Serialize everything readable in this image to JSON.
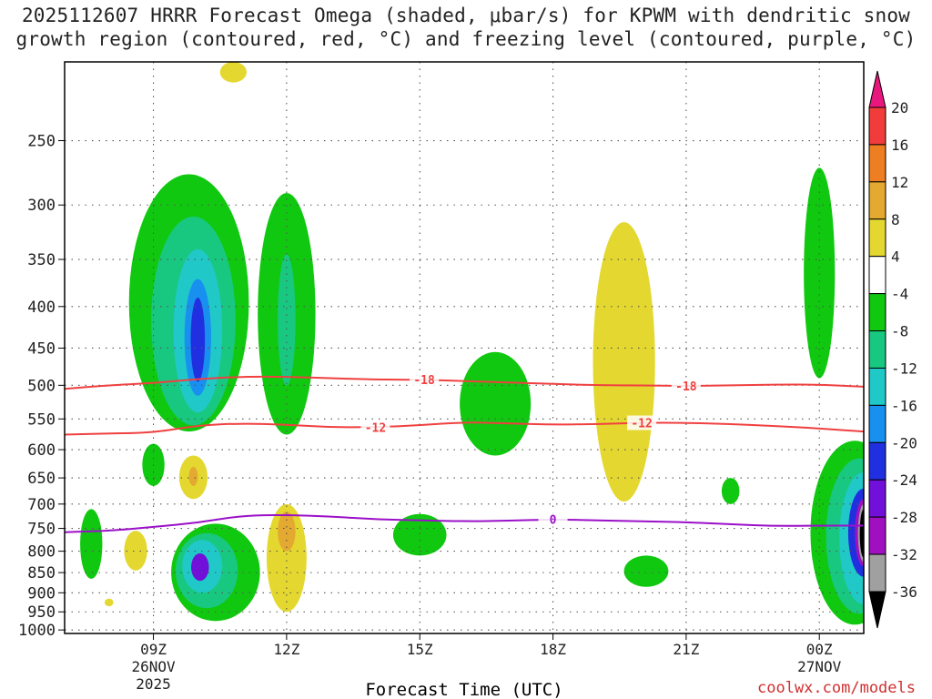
{
  "title_line1": "2025112607 HRRR Forecast Omega (shaded, μbar/s) for KPWM with dendritic snow",
  "title_line2": "growth region (contoured, red, °C) and freezing level (contoured, purple, °C)",
  "credit": "coolwx.com/models",
  "chart_data": {
    "type": "contour",
    "title": "2025112607 HRRR Forecast Omega (shaded, μbar/s) for KPWM with dendritic snow growth region (contoured, red, °C) and freezing level (contoured, purple, °C)",
    "xlabel": "Forecast Time (UTC)",
    "ylabel": "",
    "x_range_hours": [
      7,
      25
    ],
    "y_range_hpa": [
      1010,
      200
    ],
    "y_scale": "log-pressure",
    "grid": true,
    "y_ticks": [
      250,
      300,
      350,
      400,
      450,
      500,
      550,
      600,
      650,
      700,
      750,
      800,
      850,
      900,
      950,
      1000
    ],
    "x_ticks": [
      {
        "hour": 9,
        "lines": [
          "09Z",
          "26NOV",
          "2025"
        ]
      },
      {
        "hour": 12,
        "lines": [
          "12Z"
        ]
      },
      {
        "hour": 15,
        "lines": [
          "15Z"
        ]
      },
      {
        "hour": 18,
        "lines": [
          "18Z"
        ]
      },
      {
        "hour": 21,
        "lines": [
          "21Z"
        ]
      },
      {
        "hour": 24,
        "lines": [
          "00Z",
          "27NOV"
        ]
      }
    ],
    "colorbar": {
      "units": "μbar/s",
      "levels": [
        20,
        16,
        12,
        8,
        4,
        -4,
        -8,
        -12,
        -16,
        -20,
        -24,
        -28,
        -32,
        -36
      ],
      "bins": [
        {
          "from": 20,
          "to": null,
          "color": "#e8177d"
        },
        {
          "from": 16,
          "to": 20,
          "color": "#f23c3c"
        },
        {
          "from": 12,
          "to": 16,
          "color": "#ee7e22"
        },
        {
          "from": 8,
          "to": 12,
          "color": "#e4a930"
        },
        {
          "from": 4,
          "to": 8,
          "color": "#e4d830"
        },
        {
          "from": -4,
          "to": 4,
          "color": "#ffffff"
        },
        {
          "from": -8,
          "to": -4,
          "color": "#10c810"
        },
        {
          "from": -12,
          "to": -8,
          "color": "#18c880"
        },
        {
          "from": -16,
          "to": -12,
          "color": "#20c8c8"
        },
        {
          "from": -20,
          "to": -16,
          "color": "#1890f0"
        },
        {
          "from": -24,
          "to": -20,
          "color": "#2030e0"
        },
        {
          "from": -28,
          "to": -24,
          "color": "#7010d8"
        },
        {
          "from": -32,
          "to": -28,
          "color": "#a010c0"
        },
        {
          "from": -36,
          "to": -32,
          "color": "#a0a0a0"
        },
        {
          "from": null,
          "to": -36,
          "color": "#000000"
        }
      ]
    },
    "contours": [
      {
        "name": "-18 C isotherm",
        "label": "-18",
        "color": "#f04040",
        "points": [
          [
            7,
            505
          ],
          [
            8,
            500
          ],
          [
            9,
            497
          ],
          [
            10,
            491
          ],
          [
            11,
            488
          ],
          [
            12,
            488
          ],
          [
            13,
            490
          ],
          [
            14,
            492
          ],
          [
            15,
            492
          ],
          [
            16,
            494
          ],
          [
            17,
            496
          ],
          [
            18,
            498
          ],
          [
            19,
            500
          ],
          [
            20,
            500
          ],
          [
            21,
            501
          ],
          [
            22,
            500
          ],
          [
            23,
            499
          ],
          [
            24,
            499
          ],
          [
            25,
            502
          ]
        ],
        "label_hours": [
          15.1,
          21.0
        ]
      },
      {
        "name": "-12 C isotherm",
        "label": "-12",
        "color": "#f04040",
        "points": [
          [
            7,
            575
          ],
          [
            8,
            573
          ],
          [
            9,
            572
          ],
          [
            10,
            560
          ],
          [
            11,
            557
          ],
          [
            12,
            559
          ],
          [
            13,
            563
          ],
          [
            14,
            563
          ],
          [
            15,
            560
          ],
          [
            16,
            555
          ],
          [
            17,
            557
          ],
          [
            18,
            559
          ],
          [
            19,
            558
          ],
          [
            20,
            556
          ],
          [
            21,
            556
          ],
          [
            22,
            558
          ],
          [
            23,
            561
          ],
          [
            24,
            565
          ],
          [
            25,
            570
          ]
        ],
        "label_hours": [
          14.0,
          20.0
        ]
      },
      {
        "name": "0 C freezing level",
        "label": "0",
        "color": "#9b10c8",
        "points": [
          [
            7,
            758
          ],
          [
            8,
            755
          ],
          [
            9,
            747
          ],
          [
            10,
            738
          ],
          [
            11,
            723
          ],
          [
            12,
            722
          ],
          [
            13,
            725
          ],
          [
            14,
            731
          ],
          [
            15,
            733
          ],
          [
            16,
            735
          ],
          [
            17,
            734
          ],
          [
            18,
            731
          ],
          [
            19,
            733
          ],
          [
            20,
            735
          ],
          [
            21,
            737
          ],
          [
            22,
            741
          ],
          [
            23,
            745
          ],
          [
            24,
            744
          ],
          [
            25,
            744
          ]
        ],
        "label_hours": [
          18.0
        ]
      }
    ],
    "shaded_regions": [
      {
        "bin": 4,
        "value": "4 to 8",
        "center": [
          8.6,
          793
        ],
        "half_width_h": 0.26,
        "p_range": [
          755,
          845
        ]
      },
      {
        "bin": 4,
        "value": "4 to 8",
        "center": [
          9.9,
          650
        ],
        "half_width_h": 0.32,
        "p_range": [
          610,
          690
        ]
      },
      {
        "bin": 3,
        "value": "8 to 12",
        "center": [
          9.9,
          648
        ],
        "half_width_h": 0.1,
        "p_range": [
          630,
          665
        ]
      },
      {
        "bin": 4,
        "value": "4 to 8",
        "center": [
          12.0,
          790
        ],
        "half_width_h": 0.45,
        "p_range": [
          700,
          950
        ]
      },
      {
        "bin": 3,
        "value": "8 to 12",
        "center": [
          12.0,
          760
        ],
        "half_width_h": 0.2,
        "p_range": [
          715,
          800
        ]
      },
      {
        "bin": 4,
        "value": "4 to 8",
        "center": [
          19.6,
          470
        ],
        "half_width_h": 0.7,
        "p_range": [
          315,
          695
        ]
      },
      {
        "bin": 4,
        "value": "4 to 8",
        "center": [
          10.8,
          205
        ],
        "half_width_h": 0.3,
        "p_range": [
          200,
          212
        ]
      },
      {
        "bin": 4,
        "value": "4 to 8",
        "center": [
          8.0,
          925
        ],
        "half_width_h": 0.1,
        "p_range": [
          915,
          935
        ]
      },
      {
        "bin": 6,
        "value": "-8 to -4",
        "center": [
          9.8,
          395
        ],
        "half_width_h": 1.35,
        "p_range": [
          275,
          570
        ]
      },
      {
        "bin": 7,
        "value": "-12 to -8",
        "center": [
          9.9,
          400
        ],
        "half_width_h": 0.95,
        "p_range": [
          310,
          560
        ]
      },
      {
        "bin": 8,
        "value": "-16 to -12",
        "center": [
          10.0,
          410
        ],
        "half_width_h": 0.55,
        "p_range": [
          340,
          540
        ]
      },
      {
        "bin": 9,
        "value": "-20 to -16",
        "center": [
          10.0,
          420
        ],
        "half_width_h": 0.3,
        "p_range": [
          370,
          515
        ]
      },
      {
        "bin": 10,
        "value": "-24 to -20",
        "center": [
          10.0,
          430
        ],
        "half_width_h": 0.16,
        "p_range": [
          390,
          495
        ]
      },
      {
        "bin": 6,
        "value": "-8 to -4",
        "center": [
          12.0,
          415
        ],
        "half_width_h": 0.65,
        "p_range": [
          290,
          575
        ]
      },
      {
        "bin": 7,
        "value": "-12 to -8",
        "center": [
          12.0,
          410
        ],
        "half_width_h": 0.2,
        "p_range": [
          345,
          500
        ]
      },
      {
        "bin": 6,
        "value": "-8 to -4",
        "center": [
          9.0,
          625
        ],
        "half_width_h": 0.25,
        "p_range": [
          590,
          665
        ]
      },
      {
        "bin": 6,
        "value": "-8 to -4",
        "center": [
          7.6,
          790
        ],
        "half_width_h": 0.25,
        "p_range": [
          710,
          865
        ]
      },
      {
        "bin": 6,
        "value": "-8 to -4",
        "center": [
          10.4,
          820
        ],
        "half_width_h": 1.0,
        "p_range": [
          740,
          975
        ]
      },
      {
        "bin": 7,
        "value": "-12 to -8",
        "center": [
          10.2,
          825
        ],
        "half_width_h": 0.7,
        "p_range": [
          760,
          940
        ]
      },
      {
        "bin": 8,
        "value": "-16 to -12",
        "center": [
          10.1,
          830
        ],
        "half_width_h": 0.45,
        "p_range": [
          775,
          900
        ]
      },
      {
        "bin": 11,
        "value": "-28 to -24",
        "center": [
          10.05,
          835
        ],
        "half_width_h": 0.2,
        "p_range": [
          805,
          870
        ]
      },
      {
        "bin": 6,
        "value": "-8 to -4",
        "center": [
          16.7,
          515
        ],
        "half_width_h": 0.8,
        "p_range": [
          455,
          610
        ]
      },
      {
        "bin": 6,
        "value": "-8 to -4",
        "center": [
          15.0,
          770
        ],
        "half_width_h": 0.6,
        "p_range": [
          720,
          810
        ]
      },
      {
        "bin": 6,
        "value": "-8 to -4",
        "center": [
          20.1,
          850
        ],
        "half_width_h": 0.5,
        "p_range": [
          810,
          885
        ]
      },
      {
        "bin": 6,
        "value": "-8 to -4",
        "center": [
          22.0,
          673
        ],
        "half_width_h": 0.2,
        "p_range": [
          650,
          700
        ]
      },
      {
        "bin": 6,
        "value": "-8 to -4",
        "center": [
          24.0,
          380
        ],
        "half_width_h": 0.35,
        "p_range": [
          270,
          490
        ]
      },
      {
        "bin": 6,
        "value": "-8 to -4",
        "center": [
          24.8,
          760
        ],
        "half_width_h": 1.0,
        "p_range": [
          585,
          985
        ]
      },
      {
        "bin": 7,
        "value": "-12 to -8",
        "center": [
          24.9,
          760
        ],
        "half_width_h": 0.75,
        "p_range": [
          615,
          955
        ]
      },
      {
        "bin": 8,
        "value": "-16 to -12",
        "center": [
          25.0,
          760
        ],
        "half_width_h": 0.55,
        "p_range": [
          640,
          930
        ]
      },
      {
        "bin": 10,
        "value": "-24 to -20",
        "center": [
          25.0,
          755
        ],
        "half_width_h": 0.35,
        "p_range": [
          670,
          860
        ]
      },
      {
        "bin": 12,
        "value": "-32 to -28",
        "center": [
          25.0,
          755
        ],
        "half_width_h": 0.2,
        "p_range": [
          690,
          835
        ]
      },
      {
        "bin": 13,
        "value": "-36 to -32",
        "center": [
          25.0,
          755
        ],
        "half_width_h": 0.13,
        "p_range": [
          700,
          825
        ]
      },
      {
        "bin": 14,
        "value": "< -36",
        "center": [
          25.0,
          755
        ],
        "half_width_h": 0.09,
        "p_range": [
          710,
          815
        ]
      }
    ],
    "terrain_color": "#a0522d"
  }
}
